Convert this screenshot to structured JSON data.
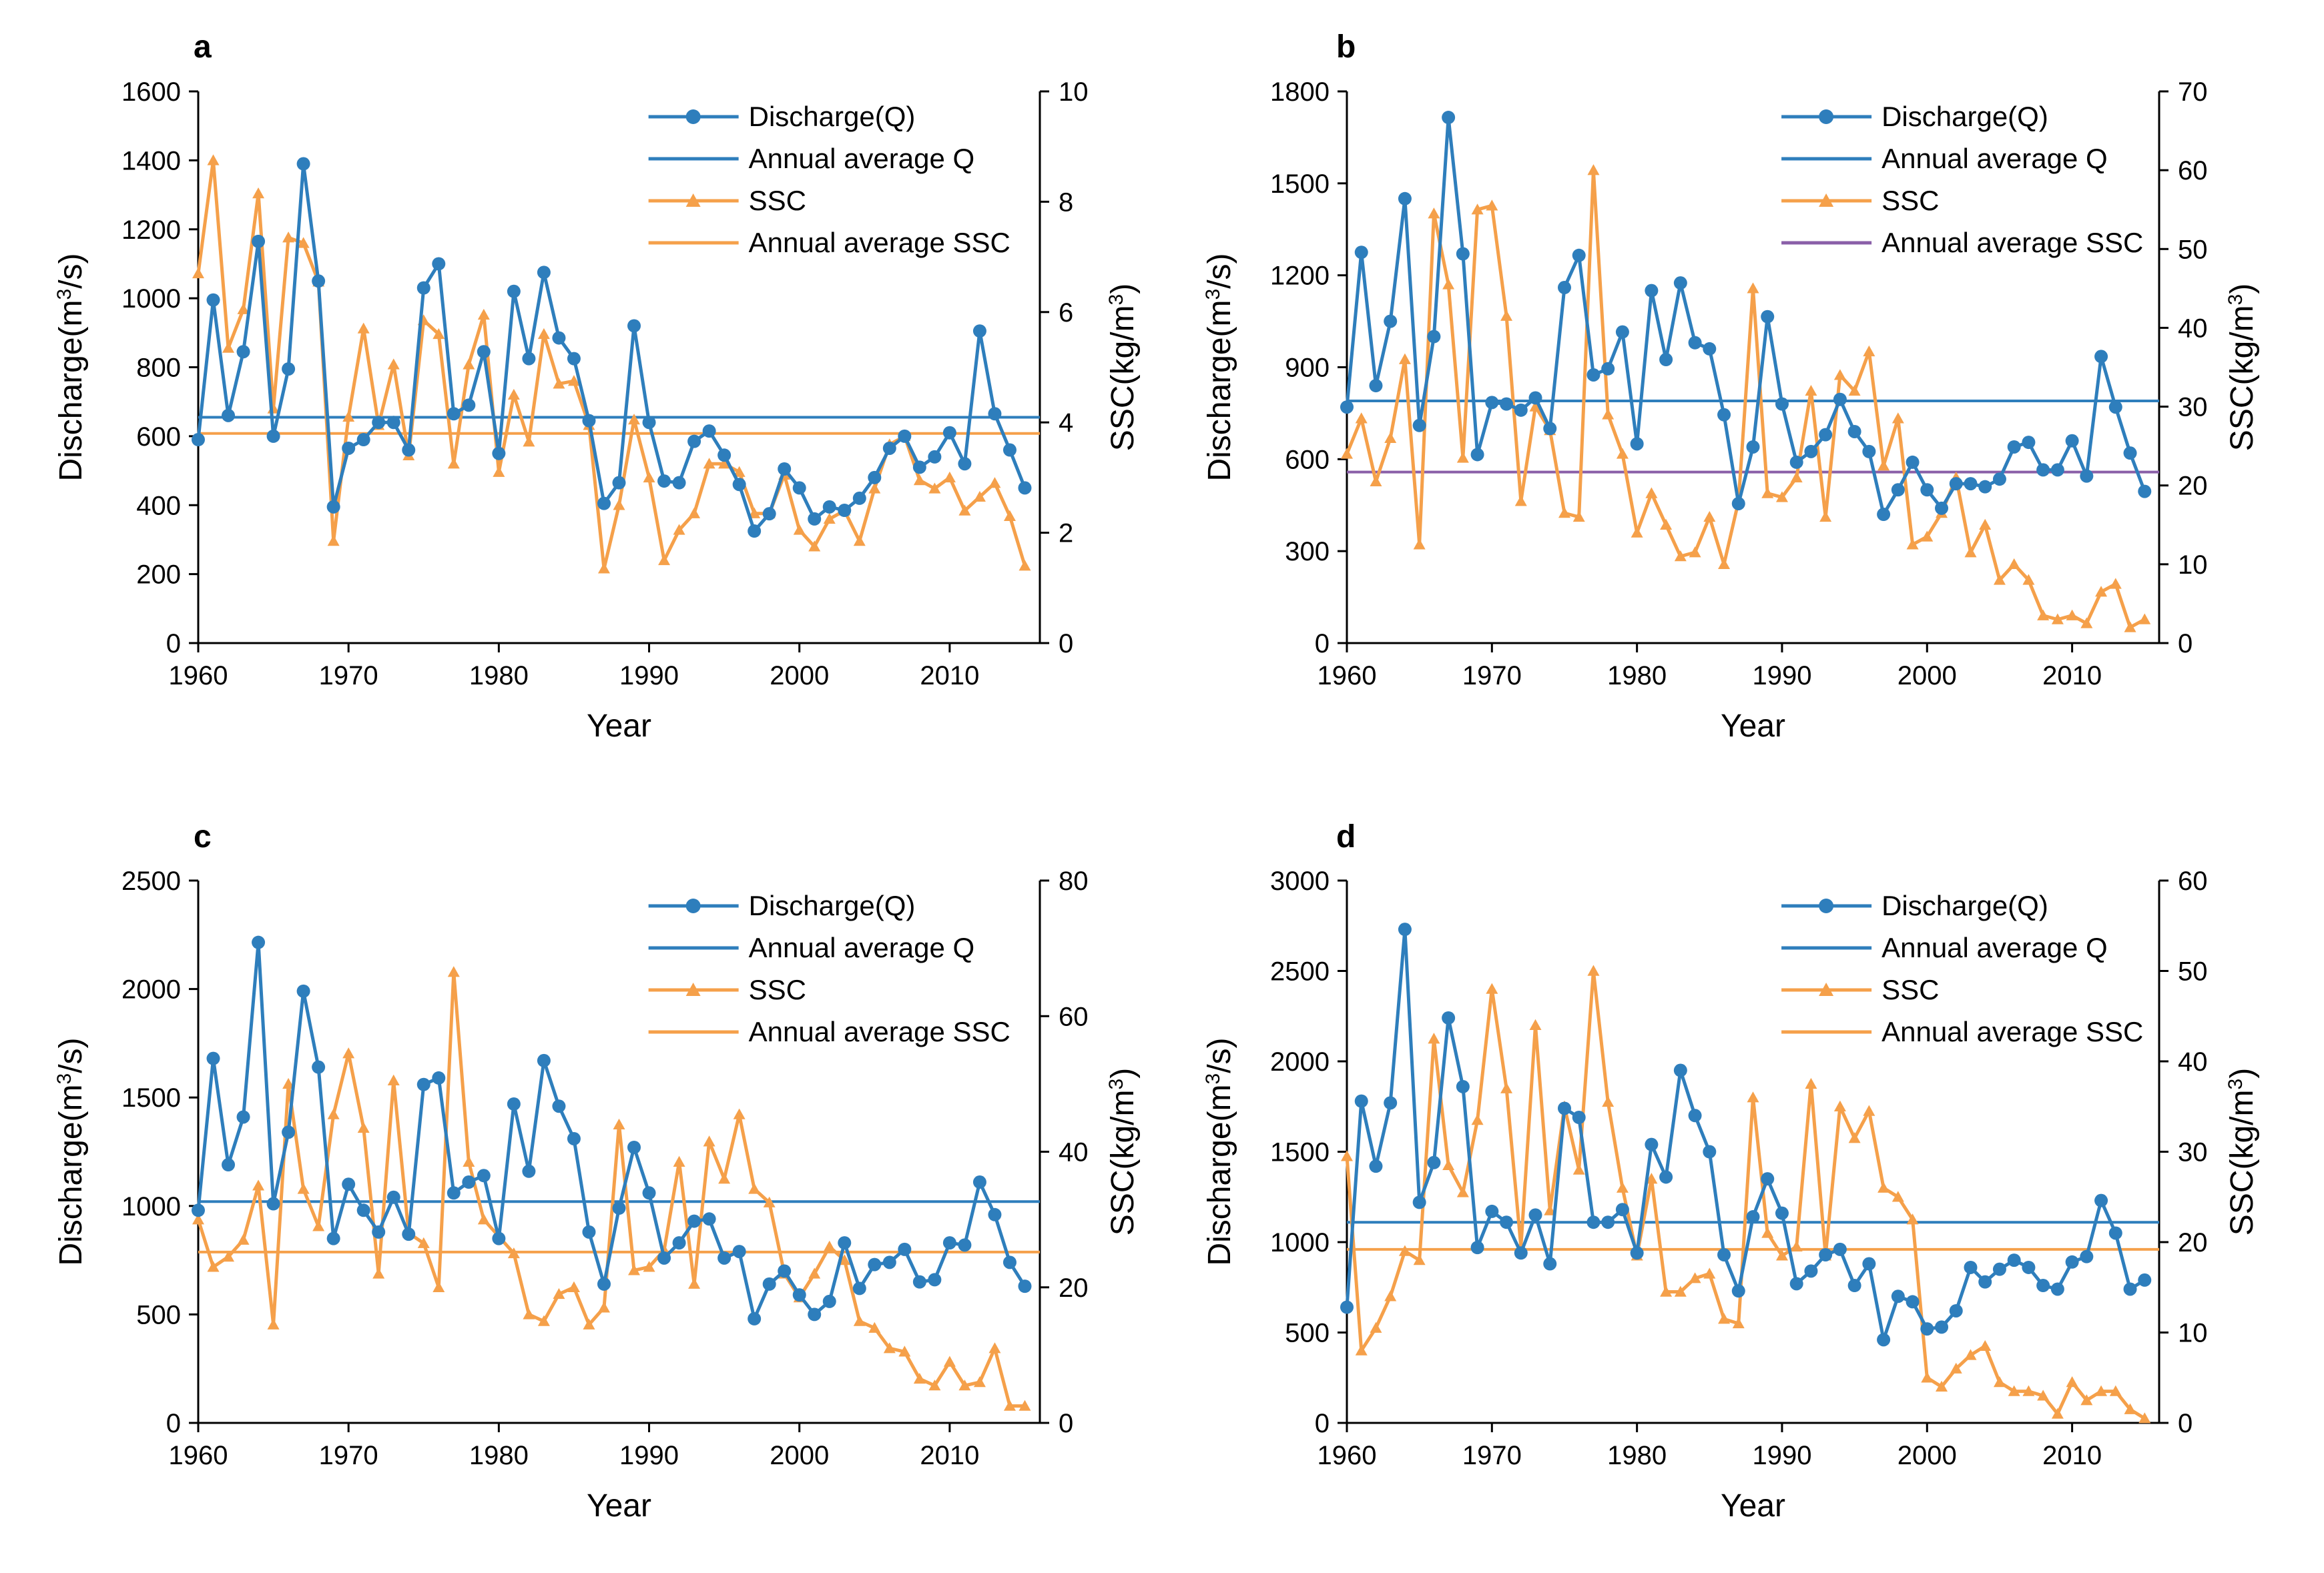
{
  "colors": {
    "discharge": "#2e7ebc",
    "ssc": "#f5a04a",
    "avg_ssc_b": "#8a5fa8",
    "axis": "#000000"
  },
  "chart_data": [
    {
      "type": "line",
      "panel": "a",
      "xlabel": "Year",
      "ylabel_main": "Discharge(m",
      "ylabel_sup": "3",
      "ylabel_end": "/s)",
      "y2label_main": "SSC(kg/m",
      "y2label_sup": "3",
      "y2label_end": ")",
      "xlim": [
        1960,
        2016
      ],
      "xticks": [
        "1960",
        "1970",
        "1980",
        "1990",
        "2000",
        "2010"
      ],
      "ylim": [
        0,
        1600
      ],
      "yticks": [
        "0",
        "200",
        "400",
        "600",
        "800",
        "1000",
        "1200",
        "1400",
        "1600"
      ],
      "y2lim": [
        0,
        10
      ],
      "y2ticks": [
        "0",
        "2",
        "4",
        "6",
        "8",
        "10"
      ],
      "legend": [
        "Discharge(Q)",
        "Annual average Q",
        "SSC",
        "Annual average SSC"
      ],
      "avg_q": 655,
      "avg_ssc": 3.8,
      "avg_ssc_color": "ssc",
      "x": [
        1960,
        1961,
        1962,
        1963,
        1964,
        1965,
        1966,
        1967,
        1968,
        1969,
        1970,
        1971,
        1972,
        1973,
        1974,
        1975,
        1976,
        1977,
        1978,
        1979,
        1980,
        1981,
        1982,
        1983,
        1984,
        1985,
        1986,
        1987,
        1988,
        1989,
        1990,
        1991,
        1992,
        1993,
        1994,
        1995,
        1996,
        1997,
        1998,
        1999,
        2000,
        2001,
        2002,
        2003,
        2004,
        2005,
        2006,
        2007,
        2008,
        2009,
        2010,
        2011,
        2012,
        2013,
        2014,
        2015
      ],
      "discharge": [
        590,
        995,
        660,
        845,
        1165,
        600,
        795,
        1390,
        1050,
        395,
        565,
        590,
        640,
        640,
        560,
        1030,
        1100,
        665,
        690,
        845,
        550,
        1020,
        825,
        1075,
        885,
        825,
        645,
        405,
        465,
        920,
        640,
        470,
        465,
        585,
        615,
        545,
        460,
        325,
        375,
        505,
        450,
        360,
        395,
        385,
        420,
        480,
        565,
        600,
        510,
        540,
        610,
        520,
        905,
        665,
        560,
        450
      ],
      "ssc": [
        6.7,
        8.75,
        5.35,
        6.05,
        8.15,
        4.25,
        7.35,
        7.25,
        6.55,
        1.85,
        4.1,
        5.7,
        3.95,
        5.05,
        3.4,
        5.85,
        5.6,
        3.25,
        5.05,
        5.95,
        3.1,
        4.5,
        3.65,
        5.6,
        4.7,
        4.75,
        3.95,
        1.35,
        2.5,
        4.05,
        3.0,
        1.5,
        2.05,
        2.35,
        3.25,
        3.25,
        3.1,
        2.35,
        2.35,
        3.05,
        2.05,
        1.75,
        2.25,
        2.4,
        1.85,
        2.8,
        3.6,
        3.75,
        2.95,
        2.8,
        3.0,
        2.4,
        2.65,
        2.9,
        2.3,
        1.4
      ]
    },
    {
      "type": "line",
      "panel": "b",
      "xlabel": "Year",
      "ylabel_main": "Discharge(m",
      "ylabel_sup": "3",
      "ylabel_end": "/s)",
      "y2label_main": "SSC(kg/m",
      "y2label_sup": "3",
      "y2label_end": ")",
      "xlim": [
        1960,
        2016
      ],
      "xticks": [
        "1960",
        "1970",
        "1980",
        "1990",
        "2000",
        "2010"
      ],
      "ylim": [
        0,
        1800
      ],
      "yticks": [
        "0",
        "300",
        "600",
        "900",
        "1200",
        "1500",
        "1800"
      ],
      "y2lim": [
        0,
        70
      ],
      "y2ticks": [
        "0",
        "10",
        "20",
        "30",
        "40",
        "50",
        "60",
        "70"
      ],
      "legend": [
        "Discharge(Q)",
        "Annual average Q",
        "SSC",
        "Annual average SSC"
      ],
      "avg_q": 790,
      "avg_ssc": 21.7,
      "avg_ssc_color": "avg_ssc_b",
      "x": [
        1960,
        1961,
        1962,
        1963,
        1964,
        1965,
        1966,
        1967,
        1968,
        1969,
        1970,
        1971,
        1972,
        1973,
        1974,
        1975,
        1976,
        1977,
        1978,
        1979,
        1980,
        1981,
        1982,
        1983,
        1984,
        1985,
        1986,
        1987,
        1988,
        1989,
        1990,
        1991,
        1992,
        1993,
        1994,
        1995,
        1996,
        1997,
        1998,
        1999,
        2000,
        2001,
        2002,
        2003,
        2004,
        2005,
        2006,
        2007,
        2008,
        2009,
        2010,
        2011,
        2012,
        2013,
        2014,
        2015
      ],
      "discharge": [
        770,
        1275,
        840,
        1050,
        1450,
        710,
        1000,
        1715,
        1270,
        615,
        785,
        780,
        760,
        800,
        700,
        1160,
        1265,
        875,
        895,
        1015,
        650,
        1150,
        925,
        1175,
        980,
        960,
        745,
        455,
        640,
        1065,
        780,
        590,
        625,
        680,
        795,
        690,
        625,
        420,
        500,
        590,
        500,
        440,
        520,
        520,
        510,
        535,
        640,
        655,
        565,
        565,
        660,
        545,
        935,
        770,
        620,
        495
      ],
      "ssc": [
        24,
        28.5,
        20.5,
        26,
        36,
        12.5,
        54.5,
        45.5,
        23.5,
        55,
        55.5,
        41.5,
        18,
        30,
        27,
        16.5,
        16,
        60,
        29,
        24,
        14,
        19,
        15,
        11,
        11.5,
        16,
        10,
        18,
        45,
        19,
        18.5,
        21,
        32,
        16,
        34,
        32,
        37,
        22.5,
        28.5,
        12.5,
        13.5,
        16.5,
        21,
        11.5,
        15,
        8,
        10,
        8,
        3.5,
        3,
        3.5,
        2.5,
        6.5,
        7.5,
        2,
        3
      ]
    },
    {
      "type": "line",
      "panel": "c",
      "xlabel": "Year",
      "ylabel_main": "Discharge(m",
      "ylabel_sup": "3",
      "ylabel_end": "/s)",
      "y2label_main": "SSC(kg/m",
      "y2label_sup": "3",
      "y2label_end": ")",
      "xlim": [
        1960,
        2016
      ],
      "xticks": [
        "1960",
        "1970",
        "1980",
        "1990",
        "2000",
        "2010"
      ],
      "ylim": [
        0,
        2500
      ],
      "yticks": [
        "0",
        "500",
        "1000",
        "1500",
        "2000",
        "2500"
      ],
      "y2lim": [
        0,
        80
      ],
      "y2ticks": [
        "0",
        "20",
        "40",
        "60",
        "80"
      ],
      "legend": [
        "Discharge(Q)",
        "Annual average Q",
        "SSC",
        "Annual average SSC"
      ],
      "avg_q": 1020,
      "avg_ssc": 25.2,
      "avg_ssc_color": "ssc",
      "x": [
        1960,
        1961,
        1962,
        1963,
        1964,
        1965,
        1966,
        1967,
        1968,
        1969,
        1970,
        1971,
        1972,
        1973,
        1974,
        1975,
        1976,
        1977,
        1978,
        1979,
        1980,
        1981,
        1982,
        1983,
        1984,
        1985,
        1986,
        1987,
        1988,
        1989,
        1990,
        1991,
        1992,
        1993,
        1994,
        1995,
        1996,
        1997,
        1998,
        1999,
        2000,
        2001,
        2002,
        2003,
        2004,
        2005,
        2006,
        2007,
        2008,
        2009,
        2010,
        2011,
        2012,
        2013,
        2014,
        2015
      ],
      "discharge": [
        980,
        1680,
        1190,
        1410,
        2215,
        1010,
        1340,
        1990,
        1640,
        850,
        1100,
        980,
        880,
        1040,
        870,
        1560,
        1590,
        1060,
        1110,
        1140,
        850,
        1470,
        1160,
        1670,
        1460,
        1310,
        880,
        640,
        990,
        1270,
        1060,
        760,
        830,
        930,
        940,
        760,
        790,
        480,
        640,
        700,
        590,
        500,
        560,
        830,
        620,
        730,
        740,
        800,
        650,
        660,
        830,
        820,
        1110,
        960,
        740,
        630
      ],
      "ssc": [
        30,
        23,
        24.5,
        27,
        35,
        14.5,
        50,
        34.5,
        29,
        45.5,
        54.5,
        43.5,
        22,
        50.5,
        28,
        26.5,
        20,
        66.5,
        38.5,
        30,
        27.5,
        25,
        16,
        15,
        19,
        20,
        14.5,
        17,
        44,
        22.5,
        23,
        25.5,
        38.5,
        20.5,
        41.5,
        36,
        45.5,
        34.5,
        32.5,
        22,
        18.5,
        22,
        26,
        24,
        15,
        14,
        11,
        10.5,
        6.5,
        5.5,
        9,
        5.5,
        6,
        11,
        2.5,
        2.5
      ]
    },
    {
      "type": "line",
      "panel": "d",
      "xlabel": "Year",
      "ylabel_main": "Discharge(m",
      "ylabel_sup": "3",
      "ylabel_end": "/s)",
      "y2label_main": "SSC(kg/m",
      "y2label_sup": "3",
      "y2label_end": ")",
      "xlim": [
        1960,
        2016
      ],
      "xticks": [
        "1960",
        "1970",
        "1980",
        "1990",
        "2000",
        "2010"
      ],
      "ylim": [
        0,
        3000
      ],
      "yticks": [
        "0",
        "500",
        "1000",
        "1500",
        "2000",
        "2500",
        "3000"
      ],
      "y2lim": [
        0,
        60
      ],
      "y2ticks": [
        "0",
        "10",
        "20",
        "30",
        "40",
        "50",
        "60"
      ],
      "legend": [
        "Discharge(Q)",
        "Annual average Q",
        "SSC",
        "Annual average SSC"
      ],
      "avg_q": 1110,
      "avg_ssc": 19.2,
      "avg_ssc_color": "ssc",
      "x": [
        1960,
        1961,
        1962,
        1963,
        1964,
        1965,
        1966,
        1967,
        1968,
        1969,
        1970,
        1971,
        1972,
        1973,
        1974,
        1975,
        1976,
        1977,
        1978,
        1979,
        1980,
        1981,
        1982,
        1983,
        1984,
        1985,
        1986,
        1987,
        1988,
        1989,
        1990,
        1991,
        1992,
        1993,
        1994,
        1995,
        1996,
        1997,
        1998,
        1999,
        2000,
        2001,
        2002,
        2003,
        2004,
        2005,
        2006,
        2007,
        2008,
        2009,
        2010,
        2011,
        2012,
        2013,
        2014,
        2015
      ],
      "discharge": [
        640,
        1780,
        1420,
        1770,
        2730,
        1220,
        1440,
        2240,
        1860,
        970,
        1170,
        1110,
        940,
        1150,
        880,
        1740,
        1690,
        1110,
        1110,
        1180,
        940,
        1540,
        1360,
        1950,
        1700,
        1500,
        930,
        730,
        1140,
        1350,
        1160,
        770,
        840,
        930,
        960,
        760,
        880,
        460,
        700,
        670,
        520,
        530,
        620,
        860,
        780,
        850,
        900,
        860,
        760,
        740,
        890,
        920,
        1230,
        1050,
        740,
        790
      ],
      "ssc": [
        29.5,
        8,
        10.5,
        14,
        19,
        18,
        42.5,
        28.5,
        25.5,
        33.5,
        48,
        37,
        19.5,
        44,
        23.5,
        35,
        28,
        50,
        35.5,
        26,
        18.5,
        27,
        14.5,
        14.5,
        16,
        16.5,
        11.5,
        11,
        36,
        21,
        18.5,
        19.5,
        37.5,
        18.5,
        35,
        31.5,
        34.5,
        26,
        25,
        22.5,
        5,
        4,
        6,
        7.5,
        8.5,
        4.5,
        3.5,
        3.5,
        3,
        1,
        4.5,
        2.5,
        3.5,
        3.5,
        1.5,
        0.5
      ]
    }
  ]
}
